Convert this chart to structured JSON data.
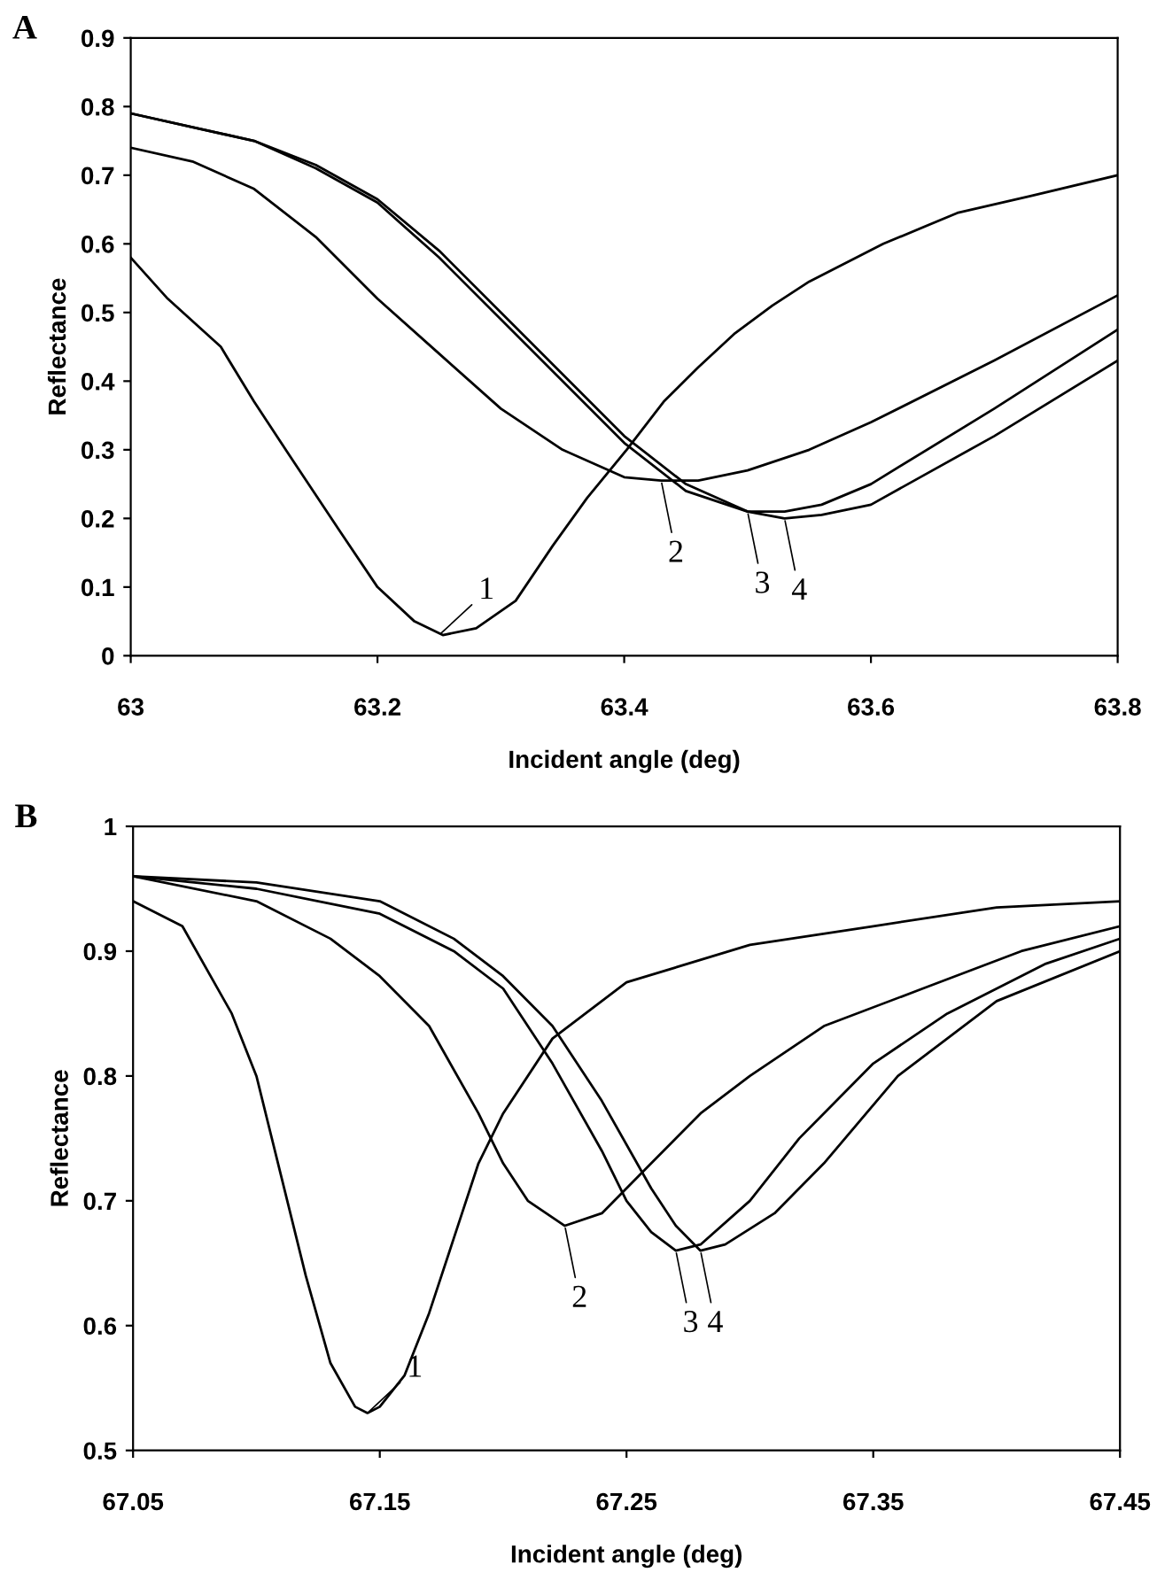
{
  "chart_data": [
    {
      "type": "line",
      "title": "A",
      "xlabel": "Incident angle (deg)",
      "ylabel": "Reflectance",
      "xlim": [
        63,
        63.8
      ],
      "xticks": [
        63,
        63.2,
        63.4,
        63.6,
        63.8
      ],
      "ylim": [
        0,
        0.9
      ],
      "yticks": [
        0,
        0.1,
        0.2,
        0.3,
        0.4,
        0.5,
        0.6,
        0.7,
        0.8,
        0.9
      ],
      "grid": false,
      "marker": "none",
      "line_style": "solid",
      "series": [
        {
          "color": "#000000",
          "x": [
            63.0,
            63.03,
            63.073,
            63.1,
            63.133,
            63.17,
            63.2,
            63.23,
            63.253,
            63.28,
            63.312,
            63.342,
            63.37,
            63.402,
            63.432,
            63.46,
            63.49,
            63.52,
            63.55,
            63.61,
            63.67,
            63.73,
            63.8
          ],
          "values": [
            0.58,
            0.52,
            0.45,
            0.37,
            0.28,
            0.18,
            0.1,
            0.05,
            0.03,
            0.04,
            0.08,
            0.16,
            0.23,
            0.3,
            0.37,
            0.42,
            0.47,
            0.51,
            0.545,
            0.6,
            0.645,
            0.67,
            0.7
          ]
        },
        {
          "color": "#000000",
          "x": [
            63.0,
            63.05,
            63.1,
            63.15,
            63.2,
            63.25,
            63.3,
            63.35,
            63.4,
            63.43,
            63.46,
            63.5,
            63.55,
            63.6,
            63.7,
            63.8
          ],
          "values": [
            0.74,
            0.72,
            0.68,
            0.61,
            0.52,
            0.44,
            0.36,
            0.3,
            0.26,
            0.255,
            0.255,
            0.27,
            0.3,
            0.34,
            0.43,
            0.525
          ]
        },
        {
          "color": "#000000",
          "x": [
            63.0,
            63.05,
            63.1,
            63.15,
            63.2,
            63.25,
            63.3,
            63.35,
            63.4,
            63.45,
            63.5,
            63.53,
            63.56,
            63.6,
            63.7,
            63.8
          ],
          "values": [
            0.79,
            0.77,
            0.75,
            0.71,
            0.66,
            0.58,
            0.49,
            0.4,
            0.31,
            0.24,
            0.21,
            0.21,
            0.22,
            0.25,
            0.36,
            0.475
          ]
        },
        {
          "color": "#000000",
          "x": [
            63.0,
            63.05,
            63.1,
            63.15,
            63.2,
            63.25,
            63.3,
            63.35,
            63.4,
            63.45,
            63.5,
            63.53,
            63.56,
            63.6,
            63.7,
            63.8
          ],
          "values": [
            0.79,
            0.77,
            0.75,
            0.715,
            0.665,
            0.59,
            0.5,
            0.41,
            0.32,
            0.25,
            0.21,
            0.2,
            0.205,
            0.22,
            0.32,
            0.43
          ]
        }
      ],
      "annotations": [
        {
          "text": "1",
          "x": 63.25,
          "y": 0.03
        },
        {
          "text": "2",
          "x": 63.43,
          "y": 0.255
        },
        {
          "text": "3",
          "x": 63.5,
          "y": 0.21
        },
        {
          "text": "4",
          "x": 63.53,
          "y": 0.2
        }
      ]
    },
    {
      "type": "line",
      "title": "B",
      "xlabel": "Incident angle (deg)",
      "ylabel": "Reflectance",
      "xlim": [
        67.05,
        67.45
      ],
      "xticks": [
        67.05,
        67.15,
        67.25,
        67.35,
        67.45
      ],
      "ylim": [
        0.5,
        1
      ],
      "yticks": [
        0.5,
        0.6,
        0.7,
        0.8,
        0.9,
        1
      ],
      "grid": false,
      "marker": "none",
      "line_style": "solid",
      "series": [
        {
          "color": "#000000",
          "x": [
            67.05,
            67.07,
            67.09,
            67.1,
            67.11,
            67.12,
            67.13,
            67.14,
            67.145,
            67.15,
            67.16,
            67.17,
            67.18,
            67.19,
            67.2,
            67.22,
            67.25,
            67.3,
            67.35,
            67.4,
            67.45
          ],
          "values": [
            0.94,
            0.92,
            0.85,
            0.8,
            0.72,
            0.64,
            0.57,
            0.535,
            0.53,
            0.535,
            0.56,
            0.61,
            0.67,
            0.73,
            0.77,
            0.83,
            0.875,
            0.905,
            0.92,
            0.935,
            0.94
          ]
        },
        {
          "color": "#000000",
          "x": [
            67.05,
            67.1,
            67.13,
            67.15,
            67.17,
            67.19,
            67.2,
            67.21,
            67.225,
            67.24,
            67.26,
            67.28,
            67.3,
            67.33,
            67.37,
            67.41,
            67.45
          ],
          "values": [
            0.96,
            0.94,
            0.91,
            0.88,
            0.84,
            0.77,
            0.73,
            0.7,
            0.68,
            0.69,
            0.73,
            0.77,
            0.8,
            0.84,
            0.87,
            0.9,
            0.92
          ]
        },
        {
          "color": "#000000",
          "x": [
            67.05,
            67.1,
            67.15,
            67.18,
            67.2,
            67.22,
            67.24,
            67.25,
            67.26,
            67.27,
            67.28,
            67.3,
            67.32,
            67.35,
            67.38,
            67.42,
            67.45
          ],
          "values": [
            0.96,
            0.95,
            0.93,
            0.9,
            0.87,
            0.81,
            0.74,
            0.7,
            0.675,
            0.66,
            0.665,
            0.7,
            0.75,
            0.81,
            0.85,
            0.89,
            0.91
          ]
        },
        {
          "color": "#000000",
          "x": [
            67.05,
            67.1,
            67.15,
            67.18,
            67.2,
            67.22,
            67.24,
            67.26,
            67.27,
            67.28,
            67.29,
            67.31,
            67.33,
            67.36,
            67.4,
            67.45
          ],
          "values": [
            0.96,
            0.955,
            0.94,
            0.91,
            0.88,
            0.84,
            0.78,
            0.71,
            0.68,
            0.66,
            0.665,
            0.69,
            0.73,
            0.8,
            0.86,
            0.9
          ]
        }
      ],
      "annotations": [
        {
          "text": "1",
          "x": 67.145,
          "y": 0.53
        },
        {
          "text": "2",
          "x": 67.225,
          "y": 0.68
        },
        {
          "text": "3",
          "x": 67.27,
          "y": 0.66
        },
        {
          "text": "4",
          "x": 67.28,
          "y": 0.66
        }
      ]
    }
  ]
}
